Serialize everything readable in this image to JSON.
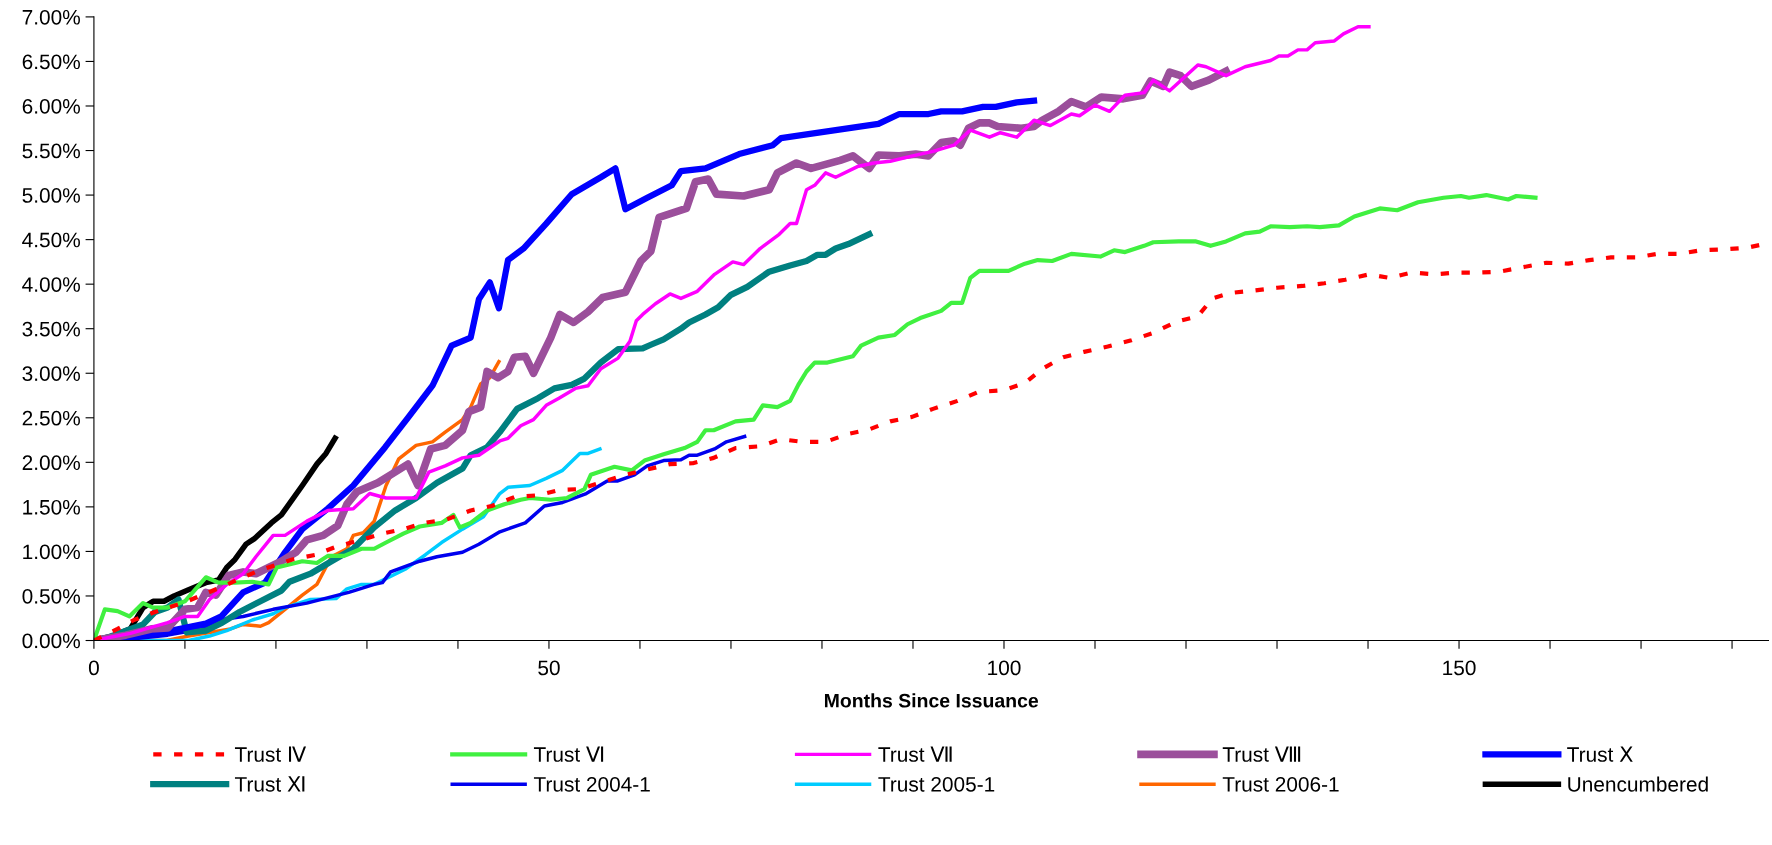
{
  "chart_data": {
    "type": "line",
    "xlabel": "Months Since Issuance",
    "xlim": [
      0,
      184
    ],
    "xticks": [
      0,
      {
        "value": 10,
        "label": null
      },
      {
        "value": 20,
        "label": null
      },
      {
        "value": 30,
        "label": null
      },
      {
        "value": 40,
        "label": null
      },
      50,
      {
        "value": 60,
        "label": null
      },
      {
        "value": 70,
        "label": null
      },
      {
        "value": 80,
        "label": null
      },
      {
        "value": 90,
        "label": null
      },
      100,
      {
        "value": 110,
        "label": null
      },
      {
        "value": 120,
        "label": null
      },
      {
        "value": 130,
        "label": null
      },
      {
        "value": 140,
        "label": null
      },
      150,
      {
        "value": 160,
        "label": null
      },
      {
        "value": 170,
        "label": null
      },
      {
        "value": 180,
        "label": null
      }
    ],
    "ylim": [
      0,
      7
    ],
    "yticks": [
      {
        "value": 0,
        "label": "0.00%"
      },
      {
        "value": 0.5,
        "label": "0.50%"
      },
      {
        "value": 1,
        "label": "1.00%"
      },
      {
        "value": 1.5,
        "label": "1.50%"
      },
      {
        "value": 2,
        "label": "2.00%"
      },
      {
        "value": 2.5,
        "label": "2.50%"
      },
      {
        "value": 3,
        "label": "3.00%"
      },
      {
        "value": 3.5,
        "label": "3.50%"
      },
      {
        "value": 4,
        "label": "4.00%"
      },
      {
        "value": 4.5,
        "label": "4.50%"
      },
      {
        "value": 5,
        "label": "5.00%"
      },
      {
        "value": 5.5,
        "label": "5.50%"
      },
      {
        "value": 6,
        "label": "6.00%"
      },
      {
        "value": 6.5,
        "label": "6.50%"
      },
      {
        "value": 7,
        "label": "7.00%"
      }
    ],
    "grid": false,
    "legend": "bottom",
    "marker": "none",
    "line_style": "solid",
    "series": [
      {
        "name": "Trust Ⅳ",
        "color": "#ff0000",
        "line_style": "dashed",
        "x": [
          0,
          2.6,
          4.4,
          6.7,
          10,
          14,
          18,
          21.8,
          24.3,
          26.8,
          29.4,
          31.7,
          34,
          36.3,
          38.8,
          41.4,
          43.7,
          46.2,
          48.8,
          51.1,
          53.4,
          56.2,
          58.4,
          60.8,
          63.3,
          65.8,
          68.1,
          70.5,
          73.2,
          75.5,
          77.8,
          80.4,
          82.9,
          85.2,
          87.5,
          89.9,
          92.2,
          94.9,
          97.2,
          100,
          102.3,
          104.2,
          106.5,
          108.8,
          111.4,
          114,
          116.3,
          119,
          121.3,
          122.9,
          124.8,
          127.6,
          130,
          132.8,
          135.2,
          137.5,
          140.1,
          142.4,
          144.8,
          147.4,
          149.7,
          152.1,
          154.4,
          157,
          159.6,
          162,
          164.3,
          166.7,
          169.5,
          171.8,
          174.2,
          176.5,
          179.1,
          181.7,
          184
        ],
        "values": [
          0,
          0.13,
          0.23,
          0.32,
          0.43,
          0.6,
          0.78,
          0.91,
          0.96,
          1.06,
          1.13,
          1.2,
          1.25,
          1.32,
          1.36,
          1.46,
          1.51,
          1.61,
          1.63,
          1.69,
          1.7,
          1.79,
          1.86,
          1.92,
          1.98,
          1.99,
          2.05,
          2.16,
          2.18,
          2.26,
          2.23,
          2.23,
          2.32,
          2.37,
          2.46,
          2.51,
          2.6,
          2.69,
          2.79,
          2.81,
          2.89,
          3.05,
          3.18,
          3.24,
          3.3,
          3.37,
          3.45,
          3.58,
          3.64,
          3.84,
          3.9,
          3.93,
          3.96,
          3.98,
          4.01,
          4.05,
          4.11,
          4.07,
          4.13,
          4.11,
          4.13,
          4.13,
          4.14,
          4.19,
          4.24,
          4.23,
          4.27,
          4.3,
          4.3,
          4.34,
          4.34,
          4.38,
          4.39,
          4.41,
          4.46
        ]
      },
      {
        "name": "Trust Ⅵ",
        "color": "#40f040",
        "x": [
          0,
          1.2,
          2.6,
          3.9,
          5.4,
          6.5,
          8.1,
          10,
          12.3,
          13.7,
          15.5,
          17.4,
          19.2,
          20.1,
          22.9,
          24.5,
          25.7,
          27.5,
          29.4,
          30.8,
          32.1,
          34,
          35.8,
          38.2,
          39.5,
          40.2,
          41.4,
          43.2,
          45.1,
          46.9,
          47.9,
          50.2,
          52,
          53.9,
          54.6,
          57.2,
          59.1,
          60.5,
          62.6,
          64.9,
          66.3,
          67.2,
          68.1,
          70.5,
          72.5,
          73.5,
          75.1,
          76.5,
          77.4,
          78.3,
          79.2,
          80.6,
          83.4,
          84.3,
          86.2,
          88,
          89.4,
          90.8,
          93.1,
          94.2,
          95.4,
          96.3,
          97.3,
          100.5,
          102.3,
          103.7,
          105.3,
          107.4,
          110.6,
          112.1,
          113.3,
          115.4,
          116.4,
          119.2,
          121.1,
          122.7,
          124.4,
          126.5,
          128.1,
          129.3,
          131.4,
          133.3,
          134.7,
          136.8,
          138.5,
          141.3,
          143.2,
          145.5,
          148.3,
          150.2,
          151.1,
          153,
          155.4,
          156.3,
          158.4
        ],
        "values": [
          0,
          0.35,
          0.33,
          0.27,
          0.42,
          0.37,
          0.37,
          0.44,
          0.71,
          0.65,
          0.65,
          0.66,
          0.63,
          0.82,
          0.89,
          0.87,
          0.95,
          0.95,
          1.03,
          1.03,
          1.1,
          1.2,
          1.28,
          1.32,
          1.41,
          1.27,
          1.32,
          1.46,
          1.53,
          1.58,
          1.6,
          1.58,
          1.6,
          1.7,
          1.86,
          1.95,
          1.91,
          2.02,
          2.09,
          2.16,
          2.23,
          2.36,
          2.36,
          2.46,
          2.48,
          2.64,
          2.62,
          2.69,
          2.87,
          3.02,
          3.12,
          3.12,
          3.19,
          3.31,
          3.4,
          3.43,
          3.55,
          3.62,
          3.7,
          3.79,
          3.79,
          4.07,
          4.15,
          4.15,
          4.23,
          4.27,
          4.26,
          4.34,
          4.31,
          4.38,
          4.36,
          4.43,
          4.47,
          4.48,
          4.48,
          4.43,
          4.48,
          4.57,
          4.59,
          4.65,
          4.64,
          4.65,
          4.64,
          4.66,
          4.76,
          4.85,
          4.83,
          4.92,
          4.97,
          4.99,
          4.97,
          5.0,
          4.95,
          4.99,
          4.97
        ]
      },
      {
        "name": "Trust Ⅶ",
        "color": "#ff00ff",
        "x": [
          0,
          4,
          8.1,
          10,
          11.4,
          12.7,
          14.6,
          16.4,
          17.8,
          19.7,
          21,
          23.4,
          25.7,
          28.5,
          30.3,
          32.1,
          35.4,
          36.8,
          38.6,
          40.5,
          42.3,
          44.6,
          45.5,
          46.9,
          48.3,
          49.7,
          51.1,
          52.9,
          54.3,
          55.7,
          57.6,
          58.9,
          59.6,
          60.3,
          61.7,
          63.3,
          64.5,
          66.3,
          68.2,
          70.2,
          71.4,
          73.2,
          75.3,
          76.5,
          77.2,
          78.3,
          79.2,
          80.4,
          81.5,
          83.9,
          85.7,
          87.5,
          90.8,
          92.2,
          94.5,
          96.3,
          98.4,
          99.6,
          101.4,
          103.3,
          105.1,
          107.4,
          108.3,
          110,
          111.6,
          113.3,
          115.4,
          116.4,
          118.2,
          121.3,
          122.2,
          124.4,
          126.5,
          129.3,
          130.2,
          131.2,
          132.3,
          133.3,
          134.2,
          136.3,
          137.3,
          138.9,
          140.1
        ],
        "values": [
          0,
          0.08,
          0.2,
          0.27,
          0.27,
          0.46,
          0.63,
          0.75,
          0.94,
          1.18,
          1.18,
          1.34,
          1.46,
          1.48,
          1.65,
          1.6,
          1.6,
          1.89,
          1.96,
          2.05,
          2.08,
          2.24,
          2.27,
          2.41,
          2.48,
          2.64,
          2.72,
          2.83,
          2.86,
          3.05,
          3.17,
          3.36,
          3.59,
          3.66,
          3.78,
          3.89,
          3.84,
          3.92,
          4.11,
          4.25,
          4.22,
          4.4,
          4.56,
          4.68,
          4.68,
          5.06,
          5.11,
          5.25,
          5.2,
          5.32,
          5.36,
          5.38,
          5.46,
          5.49,
          5.56,
          5.73,
          5.65,
          5.7,
          5.65,
          5.84,
          5.78,
          5.91,
          5.89,
          6.01,
          5.94,
          6.12,
          6.15,
          6.29,
          6.17,
          6.46,
          6.44,
          6.34,
          6.44,
          6.51,
          6.56,
          6.56,
          6.63,
          6.63,
          6.71,
          6.73,
          6.81,
          6.89,
          6.89
        ]
      },
      {
        "name": "Trust Ⅷ",
        "color": "#9b4f9b",
        "x": [
          0,
          3.5,
          6.3,
          8.1,
          10,
          11.4,
          12.3,
          13.4,
          14.8,
          16.4,
          17.8,
          20.6,
          22.2,
          23.4,
          25.2,
          26.8,
          27.8,
          28.9,
          31.2,
          34.5,
          35.6,
          37,
          38.6,
          40.5,
          41.2,
          42.5,
          43.2,
          44.4,
          45.5,
          46.2,
          47.4,
          48.3,
          50.2,
          51.2,
          52.7,
          54.3,
          55.9,
          58.4,
          60.1,
          61.2,
          62.1,
          65.1,
          66.1,
          67.5,
          68.4,
          71.4,
          74.2,
          75.1,
          77.2,
          78.8,
          82,
          83.4,
          85.2,
          86.2,
          88.5,
          90.3,
          91.7,
          93.1,
          94.5,
          95.2,
          96.1,
          97.3,
          98.4,
          99.3,
          101.9,
          103.3,
          104.2,
          106,
          107.4,
          109,
          110.7,
          113.1,
          115.2,
          116.1,
          117.5,
          118.2,
          119.4,
          120.6,
          122.5,
          124.4
        ],
        "values": [
          0,
          0.06,
          0.13,
          0.14,
          0.35,
          0.37,
          0.54,
          0.51,
          0.73,
          0.77,
          0.75,
          0.89,
          0.99,
          1.13,
          1.18,
          1.29,
          1.53,
          1.67,
          1.77,
          1.98,
          1.74,
          2.15,
          2.19,
          2.36,
          2.57,
          2.62,
          3.02,
          2.95,
          3.02,
          3.18,
          3.19,
          3.0,
          3.4,
          3.66,
          3.57,
          3.69,
          3.85,
          3.91,
          4.26,
          4.37,
          4.75,
          4.85,
          5.15,
          5.18,
          5.01,
          4.99,
          5.06,
          5.25,
          5.36,
          5.3,
          5.39,
          5.44,
          5.3,
          5.45,
          5.44,
          5.46,
          5.44,
          5.59,
          5.61,
          5.56,
          5.75,
          5.81,
          5.81,
          5.77,
          5.75,
          5.77,
          5.84,
          5.94,
          6.05,
          5.99,
          6.1,
          6.08,
          6.12,
          6.28,
          6.22,
          6.38,
          6.34,
          6.22,
          6.29,
          6.39
        ]
      },
      {
        "name": "Trust Ⅹ",
        "color": "#0000ff",
        "x": [
          0,
          4,
          8,
          12.3,
          14,
          16.4,
          18.8,
          21,
          22.9,
          25.7,
          28.5,
          32,
          34.5,
          37.2,
          39.3,
          41.4,
          42.3,
          43.5,
          44.5,
          45.5,
          47.2,
          49.7,
          52.5,
          55.7,
          57.3,
          58.4,
          60.8,
          63.5,
          64.5,
          67.2,
          70.9,
          74.6,
          75.5,
          81.5,
          86.2,
          88.5,
          91.7,
          93.1,
          95.4,
          97.7,
          99.1,
          101.4,
          103.3
        ],
        "values": [
          0,
          0.04,
          0.1,
          0.19,
          0.27,
          0.54,
          0.65,
          0.99,
          1.25,
          1.48,
          1.74,
          2.17,
          2.5,
          2.86,
          3.31,
          3.4,
          3.83,
          4.02,
          3.73,
          4.27,
          4.4,
          4.68,
          5.01,
          5.2,
          5.3,
          4.84,
          4.97,
          5.11,
          5.27,
          5.3,
          5.46,
          5.56,
          5.64,
          5.73,
          5.8,
          5.91,
          5.91,
          5.94,
          5.94,
          5.99,
          5.99,
          6.04,
          6.06
        ]
      },
      {
        "name": "Trust Ⅺ",
        "color": "#008080",
        "x": [
          0,
          1.7,
          5.4,
          6.7,
          8.1,
          9.3,
          10.2,
          12.3,
          14.1,
          16,
          18.3,
          20.6,
          21.5,
          23.8,
          26.1,
          28.5,
          30.8,
          33.1,
          35.4,
          37.7,
          40.5,
          41.4,
          43.2,
          44.6,
          46.5,
          48.8,
          50.6,
          52.5,
          53.9,
          54.8,
          55.7,
          57.6,
          60.3,
          61.2,
          62.6,
          64.5,
          65.4,
          67.2,
          68.6,
          70,
          71.8,
          74.2,
          76.5,
          78.3,
          79.5,
          80.4,
          81.5,
          82.9,
          85.2
        ],
        "values": [
          0,
          0.04,
          0.18,
          0.32,
          0.37,
          0.46,
          0.09,
          0.11,
          0.2,
          0.32,
          0.44,
          0.56,
          0.66,
          0.75,
          0.89,
          1.03,
          1.27,
          1.46,
          1.6,
          1.77,
          1.93,
          2.08,
          2.17,
          2.34,
          2.6,
          2.72,
          2.83,
          2.87,
          2.94,
          3.03,
          3.12,
          3.27,
          3.28,
          3.32,
          3.38,
          3.5,
          3.57,
          3.66,
          3.74,
          3.88,
          3.97,
          4.14,
          4.21,
          4.26,
          4.33,
          4.33,
          4.4,
          4.45,
          4.56
        ]
      },
      {
        "name": "Trust 2004-1",
        "color": "#0000ee",
        "x": [
          0,
          3.5,
          8.1,
          11.8,
          13.7,
          16.4,
          19.7,
          23.4,
          28,
          30.8,
          31.7,
          32.6,
          35.8,
          37.7,
          40.5,
          42.3,
          44.6,
          47.4,
          49.5,
          51.5,
          54.1,
          56.4,
          57.5,
          59.4,
          60.8,
          62.6,
          64.5,
          65.4,
          66.3,
          68.2,
          69.5,
          71.5
        ],
        "values": [
          0,
          0.01,
          0.06,
          0.13,
          0.23,
          0.27,
          0.35,
          0.42,
          0.54,
          0.63,
          0.65,
          0.77,
          0.89,
          0.94,
          0.99,
          1.08,
          1.22,
          1.32,
          1.51,
          1.55,
          1.65,
          1.79,
          1.79,
          1.86,
          1.96,
          2.02,
          2.03,
          2.08,
          2.08,
          2.15,
          2.23,
          2.29
        ]
      },
      {
        "name": "Trust 2005-1",
        "color": "#00ccff",
        "x": [
          0,
          10.4,
          12.7,
          14.6,
          17.4,
          19.7,
          21,
          23.8,
          26.6,
          27.8,
          29.4,
          30.8,
          34.2,
          36.4,
          38.2,
          40.5,
          42.8,
          44.6,
          45.5,
          47.9,
          49.7,
          51.5,
          53.4,
          54.3,
          55.6
        ],
        "values": [
          0,
          0,
          0.05,
          0.11,
          0.23,
          0.3,
          0.37,
          0.46,
          0.47,
          0.58,
          0.63,
          0.63,
          0.8,
          0.96,
          1.1,
          1.25,
          1.39,
          1.65,
          1.72,
          1.74,
          1.82,
          1.91,
          2.1,
          2.1,
          2.15
        ]
      },
      {
        "name": "Trust 2006-1",
        "color": "#ff6600",
        "x": [
          0,
          8,
          10.4,
          12.7,
          15,
          16.4,
          18.3,
          19.2,
          21,
          22.9,
          24.5,
          26.1,
          27.8,
          28.5,
          29.6,
          30.8,
          32.1,
          33.5,
          35.4,
          37.2,
          38.6,
          40.5,
          41.4,
          42.5,
          43.5,
          44.5
        ],
        "values": [
          0,
          0,
          0.05,
          0.09,
          0.13,
          0.18,
          0.16,
          0.2,
          0.35,
          0.51,
          0.63,
          0.94,
          1.03,
          1.18,
          1.21,
          1.34,
          1.74,
          2.04,
          2.19,
          2.23,
          2.34,
          2.48,
          2.62,
          2.88,
          2.95,
          3.13
        ]
      },
      {
        "name": "Unencumbered",
        "color": "#000000",
        "x": [
          0,
          2.1,
          4,
          5.4,
          6.5,
          7.7,
          8.8,
          10.4,
          12.3,
          13.7,
          14.6,
          15.5,
          16.7,
          17.6,
          19.5,
          20.6,
          22.9,
          24.5,
          25.5,
          26.5
        ],
        "values": [
          0,
          0.05,
          0.13,
          0.37,
          0.44,
          0.44,
          0.5,
          0.57,
          0.65,
          0.68,
          0.82,
          0.91,
          1.08,
          1.14,
          1.32,
          1.41,
          1.74,
          1.98,
          2.1,
          2.27
        ]
      }
    ]
  }
}
